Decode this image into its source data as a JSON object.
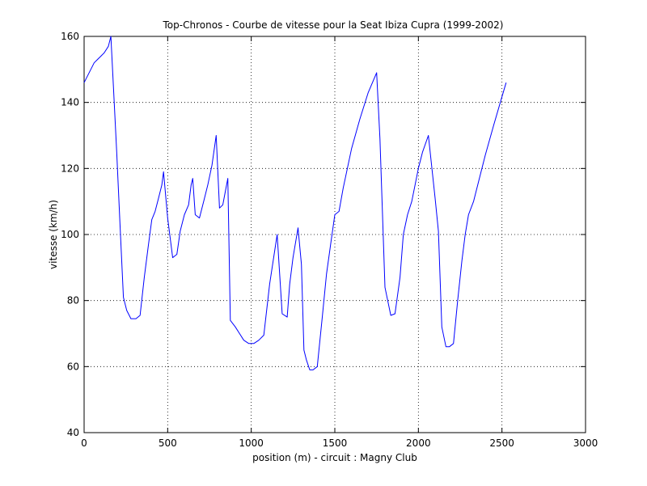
{
  "chart_data": {
    "type": "line",
    "title": "Top-Chronos - Courbe de vitesse pour la Seat Ibiza Cupra (1999-2002)",
    "xlabel": "position (m) - circuit : Magny Club",
    "ylabel": "vitesse (km/h)",
    "xlim": [
      0,
      3000
    ],
    "ylim": [
      40,
      160
    ],
    "xticks": [
      0,
      500,
      1000,
      1500,
      2000,
      2500,
      3000
    ],
    "yticks": [
      40,
      60,
      80,
      100,
      120,
      140,
      160
    ],
    "grid": true,
    "line_color": "#0000ff",
    "series": [
      {
        "x": [
          0,
          40,
          60,
          80,
          100,
          120,
          145,
          160,
          175,
          195,
          215,
          235,
          255,
          280,
          310,
          335,
          360,
          385,
          405,
          425,
          445,
          465,
          475,
          500,
          530,
          555,
          575,
          600,
          625,
          640,
          650,
          665,
          690,
          715,
          740,
          765,
          790,
          810,
          830,
          845,
          860,
          875,
          905,
          930,
          955,
          985,
          1015,
          1045,
          1075,
          1110,
          1155,
          1185,
          1215,
          1230,
          1250,
          1280,
          1300,
          1315,
          1330,
          1350,
          1370,
          1395,
          1425,
          1450,
          1475,
          1500,
          1525,
          1550,
          1575,
          1600,
          1650,
          1700,
          1750,
          1770,
          1800,
          1835,
          1860,
          1890,
          1910,
          1935,
          1960,
          1980,
          2000,
          2025,
          2060,
          2100,
          2120,
          2140,
          2165,
          2185,
          2210,
          2235,
          2260,
          2280,
          2300,
          2330,
          2360,
          2400,
          2450,
          2490,
          2525
        ],
        "y": [
          146,
          150,
          152,
          153,
          154,
          155,
          157,
          160,
          145,
          125,
          103,
          81,
          77,
          74.5,
          74.5,
          75.5,
          87,
          97,
          104.5,
          107,
          111,
          115,
          119,
          105,
          93,
          94,
          101,
          106,
          109,
          115,
          117,
          106,
          105,
          110,
          115,
          121,
          130,
          108,
          109,
          113,
          117,
          74,
          72,
          70,
          68,
          67,
          67,
          68,
          69.5,
          85,
          100,
          76,
          75,
          85,
          93,
          102,
          91,
          65,
          62,
          59,
          59,
          60,
          75,
          88,
          97,
          106,
          107,
          114,
          120,
          126,
          135,
          143,
          149,
          129,
          84,
          75.5,
          76,
          87,
          100,
          106,
          110,
          115,
          120,
          125,
          130,
          111,
          101,
          72,
          66,
          66,
          67,
          80,
          92,
          100,
          106,
          110,
          116,
          124,
          133,
          140,
          146
        ]
      }
    ]
  }
}
